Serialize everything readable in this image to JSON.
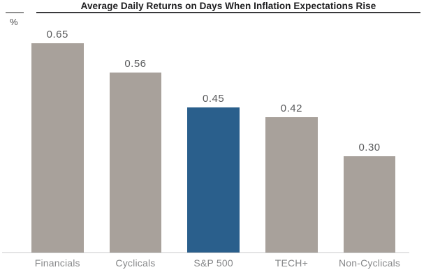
{
  "chart_data": {
    "type": "bar",
    "title": "Average Daily Returns on Days When Inflation Expectations Rise",
    "unit_label": "%",
    "categories": [
      "Financials",
      "Cyclicals",
      "S&P 500",
      "TECH+",
      "Non-Cyclicals"
    ],
    "values": [
      0.65,
      0.56,
      0.45,
      0.42,
      0.3
    ],
    "value_labels": [
      "0.65",
      "0.56",
      "0.45",
      "0.42",
      "0.30"
    ],
    "highlight_index": 2,
    "highlight_category": "S&P 500",
    "ylim": [
      0,
      0.78
    ],
    "grid": false,
    "legend": false,
    "colors": {
      "bar": "#a8a19b",
      "highlight": "#2a5f8c",
      "title_text": "#1d1d1f",
      "title_rule": "#3a3a3c",
      "axis_tick": "#8e8e8e",
      "unit_text": "#4a4a4c",
      "value_text": "#58595b",
      "category_text": "#87888a",
      "baseline": "#c9cacb",
      "background": "#ffffff"
    }
  }
}
